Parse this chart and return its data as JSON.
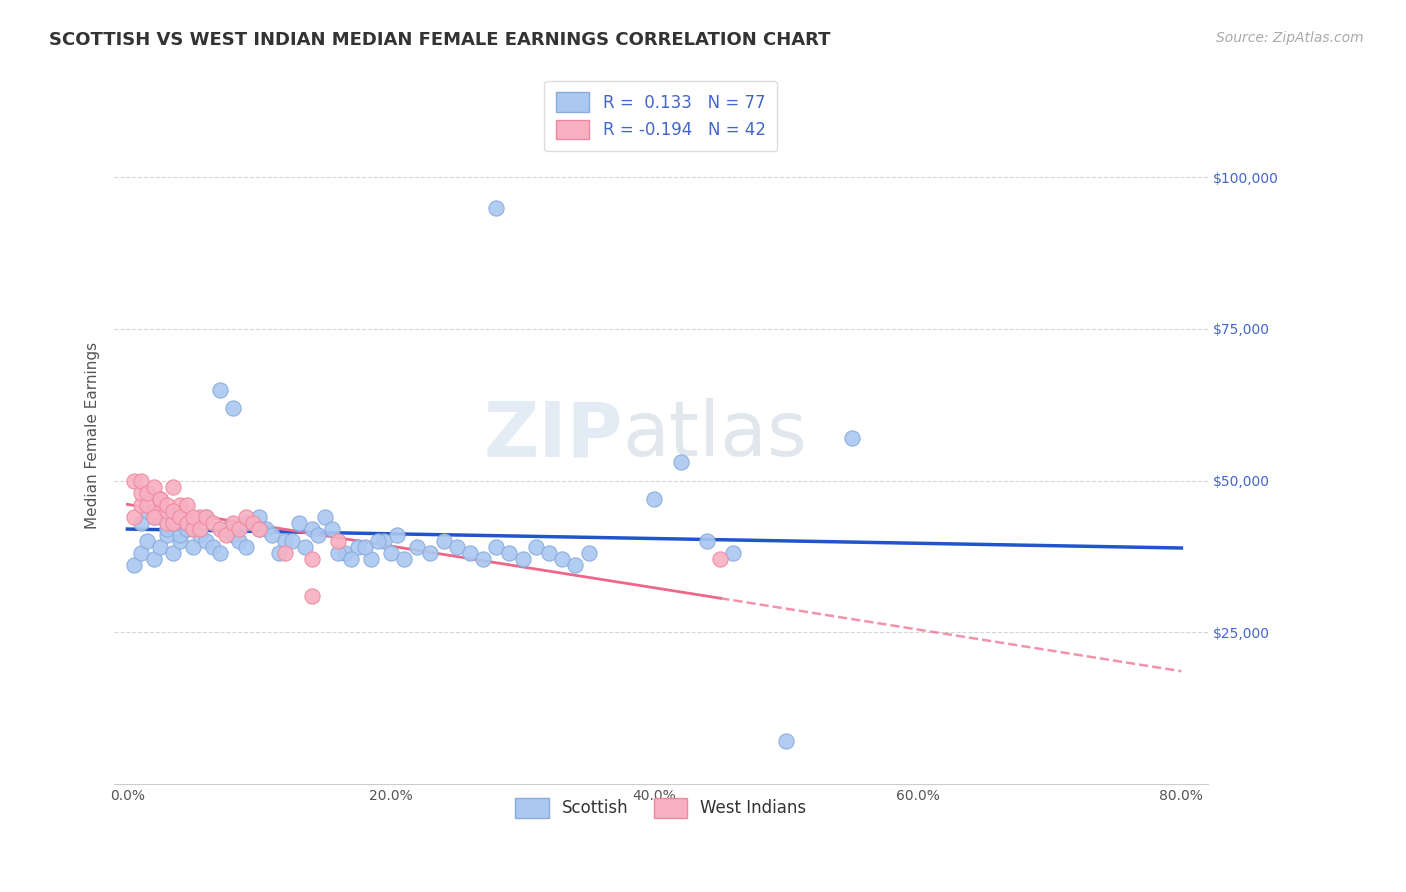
{
  "title": "SCOTTISH VS WEST INDIAN MEDIAN FEMALE EARNINGS CORRELATION CHART",
  "source": "Source: ZipAtlas.com",
  "xlabel": "",
  "ylabel": "Median Female Earnings",
  "xlim": [
    -0.01,
    0.82
  ],
  "ylim": [
    0,
    115000
  ],
  "xticks": [
    0.0,
    0.1,
    0.2,
    0.3,
    0.4,
    0.5,
    0.6,
    0.7,
    0.8
  ],
  "xticklabels": [
    "0.0%",
    "",
    "20.0%",
    "",
    "40.0%",
    "",
    "60.0%",
    "",
    "80.0%"
  ],
  "ytick_positions": [
    25000,
    50000,
    75000,
    100000
  ],
  "ytick_labels": [
    "$25,000",
    "$50,000",
    "$75,000",
    "$100,000"
  ],
  "scottish_color": "#aac8f0",
  "scottish_edge_color": "#88aadd",
  "west_indian_color": "#f8b0c0",
  "west_indian_edge_color": "#ee88a0",
  "trend_blue": "#2255cc",
  "trend_pink": "#ee6688",
  "legend_label1": "R =  0.133   N = 77",
  "legend_label2": "R = -0.194   N = 42",
  "legend_x_label1": "Scottish",
  "legend_x_label2": "West Indians",
  "watermark_zip": "ZIP",
  "watermark_atlas": "atlas",
  "background_color": "#ffffff",
  "grid_color": "#cccccc",
  "scottish_x": [
    0.005,
    0.01,
    0.015,
    0.02,
    0.025,
    0.03,
    0.035,
    0.04,
    0.045,
    0.05,
    0.01,
    0.02,
    0.03,
    0.04,
    0.05,
    0.015,
    0.025,
    0.035,
    0.045,
    0.055,
    0.06,
    0.065,
    0.07,
    0.075,
    0.08,
    0.085,
    0.09,
    0.095,
    0.1,
    0.105,
    0.06,
    0.07,
    0.08,
    0.09,
    0.1,
    0.11,
    0.12,
    0.13,
    0.14,
    0.15,
    0.115,
    0.125,
    0.135,
    0.145,
    0.155,
    0.165,
    0.175,
    0.185,
    0.195,
    0.205,
    0.16,
    0.17,
    0.18,
    0.19,
    0.2,
    0.21,
    0.22,
    0.23,
    0.24,
    0.25,
    0.26,
    0.27,
    0.28,
    0.29,
    0.3,
    0.31,
    0.32,
    0.33,
    0.34,
    0.35,
    0.4,
    0.42,
    0.44,
    0.46,
    0.5,
    0.55,
    0.28
  ],
  "scottish_y": [
    36000,
    38000,
    40000,
    37000,
    39000,
    41000,
    38000,
    40000,
    42000,
    39000,
    43000,
    44000,
    42000,
    41000,
    43000,
    45000,
    44000,
    43000,
    42000,
    41000,
    40000,
    39000,
    38000,
    42000,
    41000,
    40000,
    39000,
    43000,
    44000,
    42000,
    44000,
    65000,
    62000,
    43000,
    42000,
    41000,
    40000,
    43000,
    42000,
    44000,
    38000,
    40000,
    39000,
    41000,
    42000,
    38000,
    39000,
    37000,
    40000,
    41000,
    38000,
    37000,
    39000,
    40000,
    38000,
    37000,
    39000,
    38000,
    40000,
    39000,
    38000,
    37000,
    39000,
    38000,
    37000,
    39000,
    38000,
    37000,
    36000,
    38000,
    47000,
    53000,
    40000,
    38000,
    7000,
    57000,
    95000
  ],
  "west_indian_x": [
    0.005,
    0.01,
    0.015,
    0.02,
    0.025,
    0.03,
    0.035,
    0.005,
    0.01,
    0.015,
    0.02,
    0.025,
    0.03,
    0.035,
    0.04,
    0.01,
    0.015,
    0.02,
    0.025,
    0.03,
    0.035,
    0.04,
    0.045,
    0.05,
    0.055,
    0.045,
    0.05,
    0.055,
    0.06,
    0.065,
    0.07,
    0.075,
    0.08,
    0.085,
    0.09,
    0.095,
    0.1,
    0.12,
    0.14,
    0.16,
    0.45,
    0.14
  ],
  "west_indian_y": [
    44000,
    46000,
    48000,
    45000,
    47000,
    43000,
    49000,
    50000,
    48000,
    46000,
    44000,
    47000,
    45000,
    43000,
    46000,
    50000,
    48000,
    49000,
    47000,
    46000,
    45000,
    44000,
    43000,
    42000,
    44000,
    46000,
    44000,
    42000,
    44000,
    43000,
    42000,
    41000,
    43000,
    42000,
    44000,
    43000,
    42000,
    38000,
    37000,
    40000,
    37000,
    31000
  ],
  "title_fontsize": 13,
  "axis_label_fontsize": 11,
  "tick_fontsize": 10,
  "source_fontsize": 10,
  "watermark_fontsize": 55,
  "legend_fontsize": 12
}
